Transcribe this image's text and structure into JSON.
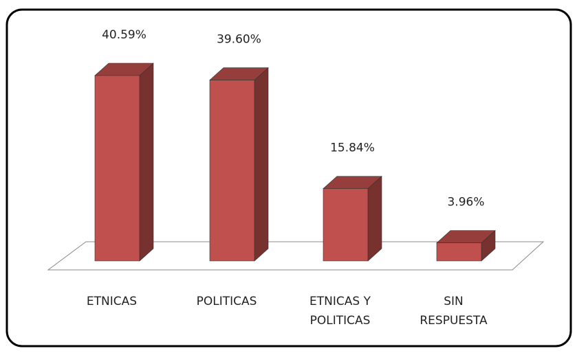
{
  "chart_data": {
    "type": "bar3d",
    "categories": [
      "ETNICAS",
      "POLITICAS",
      "ETNICAS Y POLITICAS",
      "SIN RESPUESTA"
    ],
    "values": [
      40.59,
      39.6,
      15.84,
      3.96
    ],
    "value_labels": [
      "40.59%",
      "39.60%",
      "15.84%",
      "3.96%"
    ],
    "color": "#c0504d"
  }
}
